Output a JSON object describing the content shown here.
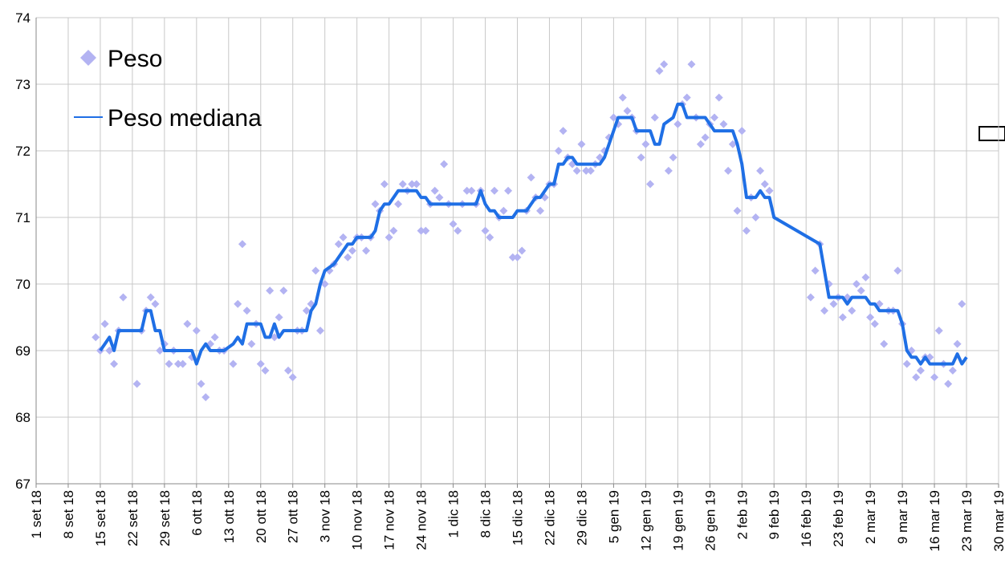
{
  "chart_data": {
    "type": "line",
    "xlim": [
      "2018-09-01",
      "2019-03-30"
    ],
    "ylim": [
      67,
      74
    ],
    "yticks": [
      67,
      68,
      69,
      70,
      71,
      72,
      73,
      74
    ],
    "xticks": [
      {
        "value": "2018-09-01",
        "label": "1 set 18"
      },
      {
        "value": "2018-09-08",
        "label": "8 set 18"
      },
      {
        "value": "2018-09-15",
        "label": "15 set 18"
      },
      {
        "value": "2018-09-22",
        "label": "22 set 18"
      },
      {
        "value": "2018-09-29",
        "label": "29 set 18"
      },
      {
        "value": "2018-10-06",
        "label": "6 ott 18"
      },
      {
        "value": "2018-10-13",
        "label": "13 ott 18"
      },
      {
        "value": "2018-10-20",
        "label": "20 ott 18"
      },
      {
        "value": "2018-10-27",
        "label": "27 ott 18"
      },
      {
        "value": "2018-11-03",
        "label": "3 nov 18"
      },
      {
        "value": "2018-11-10",
        "label": "10 nov 18"
      },
      {
        "value": "2018-11-17",
        "label": "17 nov 18"
      },
      {
        "value": "2018-11-24",
        "label": "24 nov 18"
      },
      {
        "value": "2018-12-01",
        "label": "1 dic 18"
      },
      {
        "value": "2018-12-08",
        "label": "8 dic 18"
      },
      {
        "value": "2018-12-15",
        "label": "15 dic 18"
      },
      {
        "value": "2018-12-22",
        "label": "22 dic 18"
      },
      {
        "value": "2018-12-29",
        "label": "29 dic 18"
      },
      {
        "value": "2019-01-05",
        "label": "5 gen 19"
      },
      {
        "value": "2019-01-12",
        "label": "12 gen 19"
      },
      {
        "value": "2019-01-19",
        "label": "19 gen 19"
      },
      {
        "value": "2019-01-26",
        "label": "26 gen 19"
      },
      {
        "value": "2019-02-02",
        "label": "2 feb 19"
      },
      {
        "value": "2019-02-09",
        "label": "9 feb 19"
      },
      {
        "value": "2019-02-16",
        "label": "16 feb 19"
      },
      {
        "value": "2019-02-23",
        "label": "23 feb 19"
      },
      {
        "value": "2019-03-02",
        "label": "2 mar 19"
      },
      {
        "value": "2019-03-09",
        "label": "9 mar 19"
      },
      {
        "value": "2019-03-16",
        "label": "16 mar 19"
      },
      {
        "value": "2019-03-23",
        "label": "23 mar 19"
      },
      {
        "value": "2019-03-30",
        "label": "30 mar 19"
      }
    ],
    "grid": true,
    "legend": "top-left",
    "series": [
      {
        "name": "Peso",
        "type": "scatter",
        "color": "#b3b3f2",
        "x": [
          "2018-09-14",
          "2018-09-15",
          "2018-09-16",
          "2018-09-17",
          "2018-09-18",
          "2018-09-19",
          "2018-09-20",
          "2018-09-23",
          "2018-09-24",
          "2018-09-25",
          "2018-09-26",
          "2018-09-27",
          "2018-09-28",
          "2018-09-29",
          "2018-09-30",
          "2018-10-01",
          "2018-10-02",
          "2018-10-03",
          "2018-10-04",
          "2018-10-05",
          "2018-10-06",
          "2018-10-07",
          "2018-10-08",
          "2018-10-09",
          "2018-10-10",
          "2018-10-11",
          "2018-10-12",
          "2018-10-14",
          "2018-10-15",
          "2018-10-16",
          "2018-10-17",
          "2018-10-18",
          "2018-10-19",
          "2018-10-20",
          "2018-10-21",
          "2018-10-22",
          "2018-10-23",
          "2018-10-24",
          "2018-10-25",
          "2018-10-26",
          "2018-10-27",
          "2018-10-28",
          "2018-10-29",
          "2018-10-30",
          "2018-10-31",
          "2018-11-01",
          "2018-11-02",
          "2018-11-03",
          "2018-11-04",
          "2018-11-05",
          "2018-11-06",
          "2018-11-07",
          "2018-11-08",
          "2018-11-09",
          "2018-11-10",
          "2018-11-11",
          "2018-11-12",
          "2018-11-13",
          "2018-11-14",
          "2018-11-15",
          "2018-11-16",
          "2018-11-17",
          "2018-11-18",
          "2018-11-19",
          "2018-11-20",
          "2018-11-21",
          "2018-11-22",
          "2018-11-23",
          "2018-11-24",
          "2018-11-25",
          "2018-11-26",
          "2018-11-27",
          "2018-11-28",
          "2018-11-29",
          "2018-11-30",
          "2018-12-01",
          "2018-12-02",
          "2018-12-03",
          "2018-12-04",
          "2018-12-05",
          "2018-12-06",
          "2018-12-07",
          "2018-12-08",
          "2018-12-09",
          "2018-12-10",
          "2018-12-11",
          "2018-12-12",
          "2018-12-13",
          "2018-12-14",
          "2018-12-15",
          "2018-12-16",
          "2018-12-17",
          "2018-12-18",
          "2018-12-19",
          "2018-12-20",
          "2018-12-21",
          "2018-12-22",
          "2018-12-23",
          "2018-12-24",
          "2018-12-25",
          "2018-12-26",
          "2018-12-27",
          "2018-12-28",
          "2018-12-29",
          "2018-12-30",
          "2018-12-31",
          "2019-01-01",
          "2019-01-02",
          "2019-01-03",
          "2019-01-04",
          "2019-01-05",
          "2019-01-06",
          "2019-01-07",
          "2019-01-08",
          "2019-01-09",
          "2019-01-10",
          "2019-01-11",
          "2019-01-12",
          "2019-01-13",
          "2019-01-14",
          "2019-01-15",
          "2019-01-16",
          "2019-01-17",
          "2019-01-18",
          "2019-01-19",
          "2019-01-20",
          "2019-01-21",
          "2019-01-22",
          "2019-01-23",
          "2019-01-24",
          "2019-01-25",
          "2019-01-26",
          "2019-01-27",
          "2019-01-28",
          "2019-01-29",
          "2019-01-30",
          "2019-01-31",
          "2019-02-01",
          "2019-02-02",
          "2019-02-03",
          "2019-02-04",
          "2019-02-05",
          "2019-02-06",
          "2019-02-07",
          "2019-02-08",
          "2019-02-17",
          "2019-02-18",
          "2019-02-19",
          "2019-02-20",
          "2019-02-21",
          "2019-02-22",
          "2019-02-23",
          "2019-02-24",
          "2019-02-25",
          "2019-02-26",
          "2019-02-27",
          "2019-02-28",
          "2019-03-01",
          "2019-03-02",
          "2019-03-03",
          "2019-03-04",
          "2019-03-05",
          "2019-03-06",
          "2019-03-07",
          "2019-03-08",
          "2019-03-09",
          "2019-03-10",
          "2019-03-11",
          "2019-03-12",
          "2019-03-13",
          "2019-03-14",
          "2019-03-15",
          "2019-03-16",
          "2019-03-17",
          "2019-03-18",
          "2019-03-19",
          "2019-03-20",
          "2019-03-21",
          "2019-03-22"
        ],
        "values": [
          69.2,
          69.0,
          69.4,
          69.0,
          68.8,
          69.3,
          69.8,
          68.5,
          69.3,
          69.6,
          69.8,
          69.7,
          69.0,
          69.1,
          68.8,
          69.0,
          68.8,
          68.8,
          69.4,
          68.9,
          69.3,
          68.5,
          68.3,
          69.1,
          69.2,
          69.0,
          69.0,
          68.8,
          69.7,
          70.6,
          69.6,
          69.1,
          69.4,
          68.8,
          68.7,
          69.9,
          69.2,
          69.5,
          69.9,
          68.7,
          68.6,
          69.3,
          69.3,
          69.6,
          69.7,
          70.2,
          69.3,
          70.0,
          70.2,
          70.3,
          70.6,
          70.7,
          70.4,
          70.5,
          70.7,
          70.7,
          70.5,
          70.7,
          71.2,
          71.1,
          71.5,
          70.7,
          70.8,
          71.2,
          71.5,
          71.4,
          71.5,
          71.5,
          70.8,
          70.8,
          71.2,
          71.4,
          71.3,
          71.8,
          71.2,
          70.9,
          70.8,
          71.2,
          71.4,
          71.4,
          71.2,
          71.4,
          70.8,
          70.7,
          71.4,
          71.0,
          71.1,
          71.4,
          70.4,
          70.4,
          70.5,
          71.1,
          71.6,
          71.3,
          71.1,
          71.3,
          71.5,
          71.5,
          72.0,
          72.3,
          71.9,
          71.8,
          71.7,
          72.1,
          71.7,
          71.7,
          71.8,
          71.9,
          72.0,
          72.2,
          72.5,
          72.4,
          72.8,
          72.6,
          72.5,
          72.3,
          71.9,
          72.1,
          71.5,
          72.5,
          73.2,
          73.3,
          71.7,
          71.9,
          72.4,
          72.7,
          72.8,
          73.3,
          72.5,
          72.1,
          72.2,
          72.4,
          72.5,
          72.8,
          72.4,
          71.7,
          72.1,
          71.1,
          72.3,
          70.8,
          71.3,
          71.0,
          71.7,
          71.5,
          71.4,
          69.8,
          70.2,
          70.6,
          69.6,
          70.0,
          69.7,
          69.8,
          69.5,
          69.8,
          69.6,
          70.0,
          69.9,
          70.1,
          69.5,
          69.4,
          69.7,
          69.1,
          69.6,
          69.6,
          70.2,
          69.4,
          68.8,
          69.0,
          68.6,
          68.7,
          68.9,
          68.9,
          68.6,
          69.3,
          68.8,
          68.5,
          68.7,
          69.1,
          69.7
        ]
      },
      {
        "name": "Peso mediana",
        "type": "line",
        "color": "#1f6fe5",
        "x": [
          "2018-09-15",
          "2018-09-16",
          "2018-09-17",
          "2018-09-18",
          "2018-09-19",
          "2018-09-20",
          "2018-09-24",
          "2018-09-25",
          "2018-09-26",
          "2018-09-27",
          "2018-09-28",
          "2018-09-29",
          "2018-10-05",
          "2018-10-06",
          "2018-10-07",
          "2018-10-08",
          "2018-10-09",
          "2018-10-12",
          "2018-10-14",
          "2018-10-15",
          "2018-10-16",
          "2018-10-17",
          "2018-10-20",
          "2018-10-21",
          "2018-10-22",
          "2018-10-23",
          "2018-10-24",
          "2018-10-25",
          "2018-10-30",
          "2018-10-31",
          "2018-11-01",
          "2018-11-02",
          "2018-11-03",
          "2018-11-05",
          "2018-11-06",
          "2018-11-07",
          "2018-11-08",
          "2018-11-09",
          "2018-11-10",
          "2018-11-13",
          "2018-11-14",
          "2018-11-15",
          "2018-11-16",
          "2018-11-17",
          "2018-11-18",
          "2018-11-19",
          "2018-11-23",
          "2018-11-24",
          "2018-11-25",
          "2018-11-26",
          "2018-12-06",
          "2018-12-07",
          "2018-12-08",
          "2018-12-09",
          "2018-12-10",
          "2018-12-11",
          "2018-12-14",
          "2018-12-15",
          "2018-12-17",
          "2018-12-18",
          "2018-12-19",
          "2018-12-20",
          "2018-12-22",
          "2018-12-23",
          "2018-12-24",
          "2018-12-25",
          "2018-12-26",
          "2018-12-27",
          "2018-12-28",
          "2019-01-02",
          "2019-01-03",
          "2019-01-04",
          "2019-01-05",
          "2019-01-06",
          "2019-01-09",
          "2019-01-10",
          "2019-01-13",
          "2019-01-14",
          "2019-01-15",
          "2019-01-16",
          "2019-01-18",
          "2019-01-19",
          "2019-01-20",
          "2019-01-21",
          "2019-01-25",
          "2019-01-26",
          "2019-01-27",
          "2019-01-31",
          "2019-02-01",
          "2019-02-02",
          "2019-02-03",
          "2019-02-05",
          "2019-02-06",
          "2019-02-07",
          "2019-02-08",
          "2019-02-09",
          "2019-02-19",
          "2019-02-20",
          "2019-02-21",
          "2019-02-24",
          "2019-02-25",
          "2019-02-26",
          "2019-03-01",
          "2019-03-02",
          "2019-03-03",
          "2019-03-04",
          "2019-03-08",
          "2019-03-09",
          "2019-03-10",
          "2019-03-11",
          "2019-03-12",
          "2019-03-13",
          "2019-03-14",
          "2019-03-15",
          "2019-03-20",
          "2019-03-21",
          "2019-03-22",
          "2019-03-23"
        ],
        "values": [
          69.0,
          69.1,
          69.2,
          69.0,
          69.3,
          69.3,
          69.3,
          69.6,
          69.6,
          69.3,
          69.3,
          69.0,
          69.0,
          68.8,
          69.0,
          69.1,
          69.0,
          69.0,
          69.1,
          69.2,
          69.1,
          69.4,
          69.4,
          69.2,
          69.2,
          69.4,
          69.2,
          69.3,
          69.3,
          69.6,
          69.7,
          70.0,
          70.2,
          70.3,
          70.4,
          70.5,
          70.6,
          70.6,
          70.7,
          70.7,
          70.8,
          71.1,
          71.2,
          71.2,
          71.3,
          71.4,
          71.4,
          71.3,
          71.3,
          71.2,
          71.2,
          71.4,
          71.2,
          71.1,
          71.1,
          71.0,
          71.0,
          71.1,
          71.1,
          71.2,
          71.3,
          71.3,
          71.5,
          71.5,
          71.8,
          71.8,
          71.9,
          71.9,
          71.8,
          71.8,
          71.9,
          72.1,
          72.3,
          72.5,
          72.5,
          72.3,
          72.3,
          72.1,
          72.1,
          72.4,
          72.5,
          72.7,
          72.7,
          72.5,
          72.5,
          72.4,
          72.3,
          72.3,
          72.1,
          71.8,
          71.3,
          71.3,
          71.4,
          71.3,
          71.3,
          71.0,
          70.6,
          70.2,
          69.8,
          69.8,
          69.7,
          69.8,
          69.8,
          69.7,
          69.7,
          69.6,
          69.6,
          69.4,
          69.0,
          68.9,
          68.9,
          68.8,
          68.9,
          68.8,
          68.8,
          68.95,
          68.8,
          68.9
        ]
      }
    ]
  }
}
